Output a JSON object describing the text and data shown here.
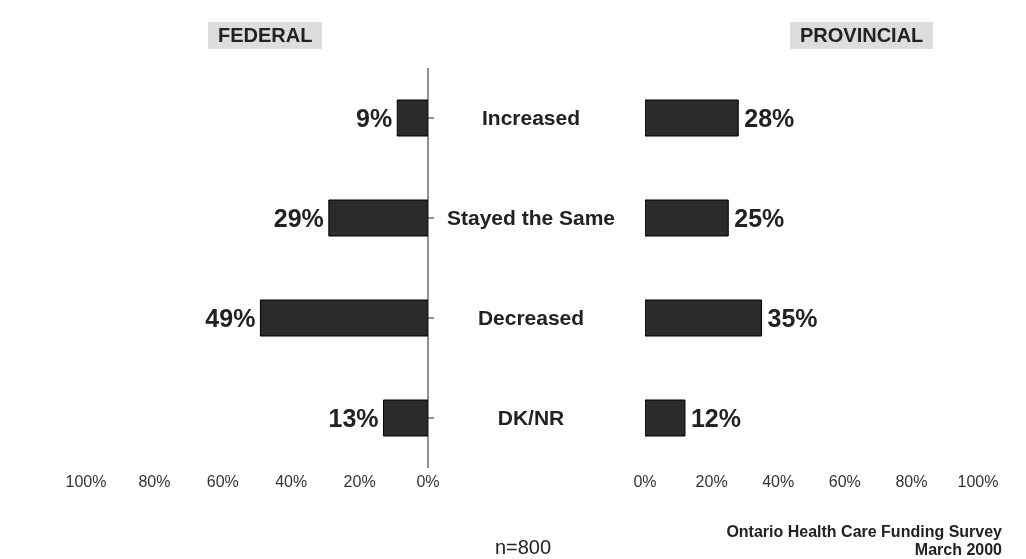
{
  "chart_data": [
    {
      "type": "bar",
      "orientation": "horizontal",
      "title": "FEDERAL",
      "categories": [
        "Increased",
        "Stayed the Same",
        "Decreased",
        "DK/NR"
      ],
      "values": [
        9,
        29,
        49,
        13
      ],
      "value_labels": [
        "9%",
        "29%",
        "49%",
        "13%"
      ],
      "color": "#2b2b2b",
      "xlim": [
        100,
        0
      ],
      "xticks": [
        {
          "value": 100,
          "label": "100%"
        },
        {
          "value": 80,
          "label": "80%"
        },
        {
          "value": 60,
          "label": "60%"
        },
        {
          "value": 40,
          "label": "40%"
        },
        {
          "value": 20,
          "label": "20%"
        },
        {
          "value": 0,
          "label": "0%"
        }
      ],
      "annotations": [
        "n=800"
      ]
    },
    {
      "type": "bar",
      "orientation": "horizontal",
      "title": "PROVINCIAL",
      "values": [
        28,
        25,
        35,
        12
      ],
      "value_labels": [
        "28%",
        "25%",
        "35%",
        "12%"
      ],
      "color": "#2b2b2b",
      "xlim": [
        0,
        100
      ],
      "xticks": [
        {
          "value": 0,
          "label": "0%"
        },
        {
          "value": 20,
          "label": "20%"
        },
        {
          "value": 40,
          "label": "40%"
        },
        {
          "value": 60,
          "label": "60%"
        },
        {
          "value": 80,
          "label": "80%"
        },
        {
          "value": 100,
          "label": "100%"
        }
      ],
      "tick_labels": "x",
      "annotations": [
        "Ontario Health Care Funding Survey",
        "March 2000"
      ]
    }
  ]
}
